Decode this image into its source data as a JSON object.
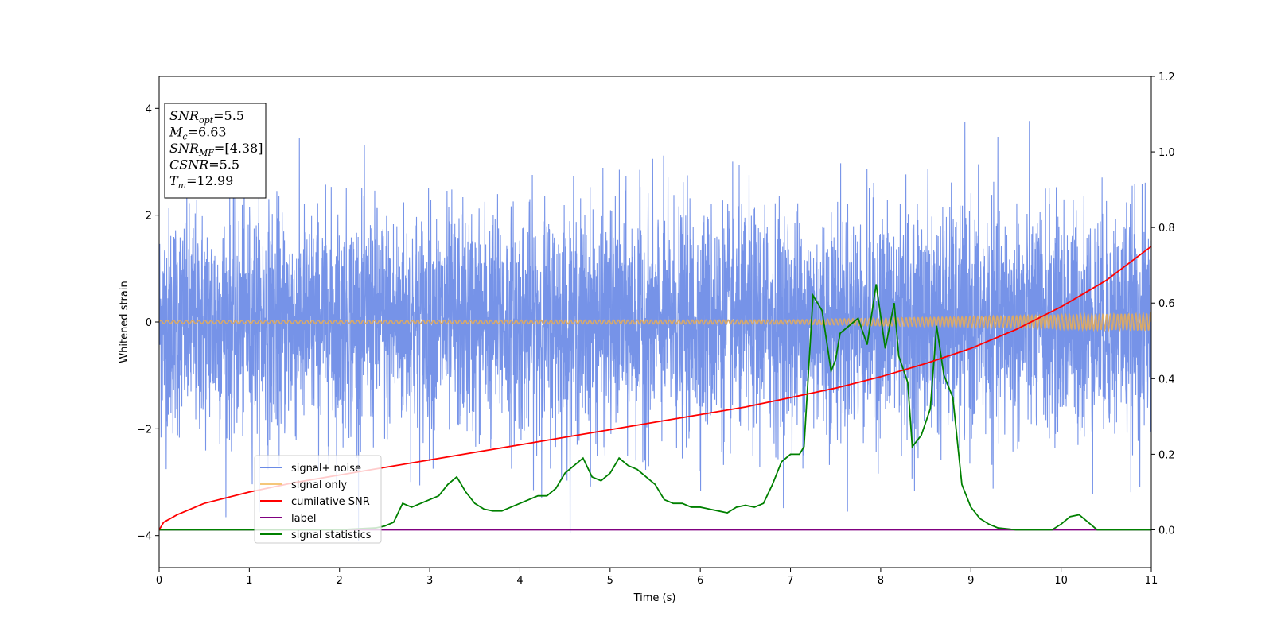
{
  "chart_data": {
    "type": "line",
    "xlabel": "Time (s)",
    "ylabel": "Whitened strain",
    "xlim": [
      0,
      11
    ],
    "ylim_left": [
      -4.6,
      4.6
    ],
    "ylim_right": [
      -0.1,
      1.2
    ],
    "x_ticks": [
      0,
      1,
      2,
      3,
      4,
      5,
      6,
      7,
      8,
      9,
      10,
      11
    ],
    "y_ticks_left": [
      4,
      2,
      0,
      -2,
      -4
    ],
    "y_ticks_left_labels": [
      "4",
      "2",
      "0",
      "−2",
      "−4"
    ],
    "y_ticks_right": [
      0.0,
      0.2,
      0.4,
      0.6,
      0.8,
      1.0,
      1.2
    ],
    "y_ticks_right_labels": [
      "0.0",
      "0.2",
      "0.4",
      "0.6",
      "0.8",
      "1.0",
      "1.2"
    ],
    "grid": false,
    "legend_position": "lower-left",
    "legend": [
      {
        "label": "signal+ noise",
        "color": "#6a8ae6"
      },
      {
        "label": "signal only",
        "color": "#f5c77a"
      },
      {
        "label": "cumilative SNR",
        "color": "#ff0000"
      },
      {
        "label": "label",
        "color": "#800080"
      },
      {
        "label": "signal statistics",
        "color": "#008000"
      }
    ],
    "series": [
      {
        "name": "signal+ noise",
        "axis": "left",
        "color": "#6a8ae6",
        "noise_std": 1.05,
        "x_range": [
          0,
          11
        ]
      },
      {
        "name": "signal only",
        "axis": "left",
        "color": "#d8a96a",
        "amplitude_x": [
          0,
          7,
          8,
          9,
          10,
          11
        ],
        "amplitude_y": [
          0.03,
          0.04,
          0.07,
          0.1,
          0.13,
          0.16
        ]
      },
      {
        "name": "cumilative SNR",
        "axis": "right",
        "color": "#ff0000",
        "x": [
          0,
          0.05,
          0.2,
          0.5,
          1,
          1.5,
          2,
          2.5,
          3,
          3.5,
          4,
          4.5,
          5,
          5.5,
          6,
          6.5,
          7,
          7.5,
          8,
          8.5,
          9,
          9.5,
          10,
          10.5,
          11
        ],
        "y": [
          0.0,
          0.02,
          0.04,
          0.07,
          0.1,
          0.125,
          0.145,
          0.165,
          0.185,
          0.205,
          0.225,
          0.245,
          0.265,
          0.285,
          0.305,
          0.325,
          0.35,
          0.375,
          0.405,
          0.44,
          0.48,
          0.53,
          0.59,
          0.66,
          0.75
        ]
      },
      {
        "name": "label",
        "axis": "right",
        "color": "#800080",
        "x": [
          0,
          11
        ],
        "y": [
          0.0,
          0.0
        ]
      },
      {
        "name": "signal statistics",
        "axis": "right",
        "color": "#008000",
        "x": [
          0,
          1,
          2,
          2.4,
          2.5,
          2.6,
          2.7,
          2.8,
          2.9,
          3.0,
          3.1,
          3.2,
          3.3,
          3.4,
          3.5,
          3.6,
          3.7,
          3.8,
          3.9,
          4.0,
          4.1,
          4.2,
          4.3,
          4.4,
          4.5,
          4.6,
          4.7,
          4.8,
          4.9,
          5.0,
          5.1,
          5.2,
          5.3,
          5.4,
          5.5,
          5.6,
          5.7,
          5.8,
          5.9,
          6.0,
          6.1,
          6.2,
          6.3,
          6.4,
          6.5,
          6.6,
          6.7,
          6.8,
          6.9,
          7.0,
          7.1,
          7.15,
          7.25,
          7.35,
          7.45,
          7.5,
          7.55,
          7.65,
          7.75,
          7.85,
          7.95,
          8.05,
          8.15,
          8.2,
          8.3,
          8.35,
          8.45,
          8.55,
          8.62,
          8.7,
          8.8,
          8.9,
          9.0,
          9.1,
          9.2,
          9.3,
          9.5,
          9.7,
          9.9,
          10.0,
          10.1,
          10.2,
          10.3,
          10.4,
          10.6,
          11
        ],
        "y": [
          0.0,
          0.0,
          0.0,
          0.005,
          0.01,
          0.02,
          0.07,
          0.06,
          0.07,
          0.08,
          0.09,
          0.12,
          0.14,
          0.1,
          0.07,
          0.055,
          0.05,
          0.05,
          0.06,
          0.07,
          0.08,
          0.09,
          0.09,
          0.11,
          0.15,
          0.17,
          0.19,
          0.14,
          0.13,
          0.15,
          0.19,
          0.17,
          0.16,
          0.14,
          0.12,
          0.08,
          0.07,
          0.07,
          0.06,
          0.06,
          0.055,
          0.05,
          0.045,
          0.06,
          0.065,
          0.06,
          0.07,
          0.12,
          0.18,
          0.2,
          0.2,
          0.22,
          0.62,
          0.58,
          0.42,
          0.45,
          0.52,
          0.54,
          0.56,
          0.49,
          0.65,
          0.48,
          0.6,
          0.46,
          0.39,
          0.22,
          0.25,
          0.32,
          0.54,
          0.41,
          0.35,
          0.12,
          0.06,
          0.03,
          0.015,
          0.005,
          0.0,
          0.0,
          0.0,
          0.015,
          0.035,
          0.04,
          0.02,
          0.0,
          0.0,
          0.0
        ]
      }
    ]
  },
  "info_box": [
    {
      "sym": "SNR",
      "sub": "opt",
      "value": "=5.5"
    },
    {
      "sym": "M",
      "sub": "c",
      "value": "=6.63"
    },
    {
      "sym": "SNR",
      "sub": "MF",
      "value": "=[4.38]"
    },
    {
      "sym": "CSNR",
      "sub": "",
      "value": "=5.5"
    },
    {
      "sym": "T",
      "sub": "m",
      "value": "=12.99"
    }
  ]
}
